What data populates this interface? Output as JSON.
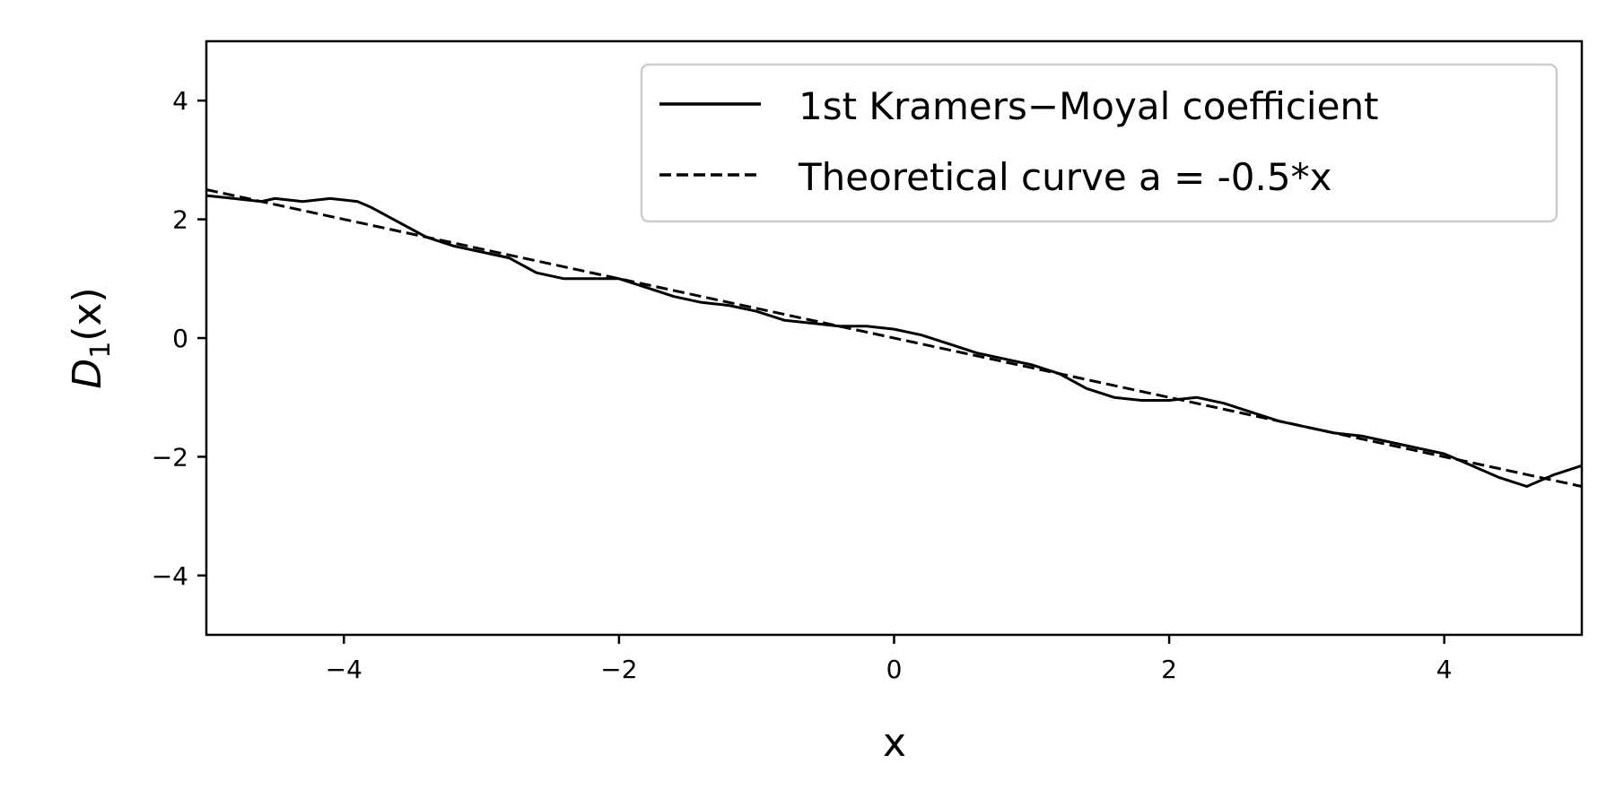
{
  "chart_data": {
    "type": "line",
    "xlabel": "x",
    "ylabel_main": "D",
    "ylabel_sub": "1",
    "ylabel_tail": "(x)",
    "xlim": [
      -5,
      5
    ],
    "ylim": [
      -5,
      5
    ],
    "xticks": [
      -4,
      -2,
      0,
      2,
      4
    ],
    "yticks": [
      -4,
      -2,
      0,
      2,
      4
    ],
    "xtick_labels": [
      "−4",
      "−2",
      "0",
      "2",
      "4"
    ],
    "ytick_labels": [
      "−4",
      "−2",
      "0",
      "2",
      "4"
    ],
    "grid": false,
    "legend_position": "top-right",
    "color": "#000000",
    "series": [
      {
        "name": "1st Kramers−Moyal coefficient",
        "style": "solid",
        "x": [
          -5.0,
          -4.8,
          -4.6,
          -4.5,
          -4.3,
          -4.1,
          -3.9,
          -3.8,
          -3.6,
          -3.4,
          -3.2,
          -3.0,
          -2.8,
          -2.6,
          -2.4,
          -2.2,
          -2.0,
          -1.8,
          -1.6,
          -1.4,
          -1.2,
          -1.0,
          -0.8,
          -0.6,
          -0.4,
          -0.2,
          0.0,
          0.2,
          0.4,
          0.6,
          0.8,
          1.0,
          1.2,
          1.4,
          1.6,
          1.8,
          2.0,
          2.2,
          2.4,
          2.6,
          2.8,
          3.0,
          3.2,
          3.4,
          3.6,
          3.8,
          4.0,
          4.2,
          4.4,
          4.6,
          4.8,
          5.0
        ],
        "y": [
          2.4,
          2.35,
          2.3,
          2.35,
          2.3,
          2.35,
          2.3,
          2.2,
          1.95,
          1.7,
          1.55,
          1.45,
          1.35,
          1.1,
          1.0,
          1.0,
          1.0,
          0.85,
          0.7,
          0.6,
          0.55,
          0.45,
          0.3,
          0.25,
          0.2,
          0.2,
          0.15,
          0.05,
          -0.1,
          -0.25,
          -0.35,
          -0.45,
          -0.6,
          -0.85,
          -1.0,
          -1.05,
          -1.05,
          -1.0,
          -1.1,
          -1.25,
          -1.4,
          -1.5,
          -1.6,
          -1.65,
          -1.75,
          -1.85,
          -1.95,
          -2.15,
          -2.35,
          -2.5,
          -2.3,
          -2.15
        ]
      },
      {
        "name": "Theoretical curve a = -0.5*x",
        "style": "dashed",
        "x": [
          -5,
          5
        ],
        "y": [
          2.5,
          -2.5
        ]
      }
    ]
  }
}
